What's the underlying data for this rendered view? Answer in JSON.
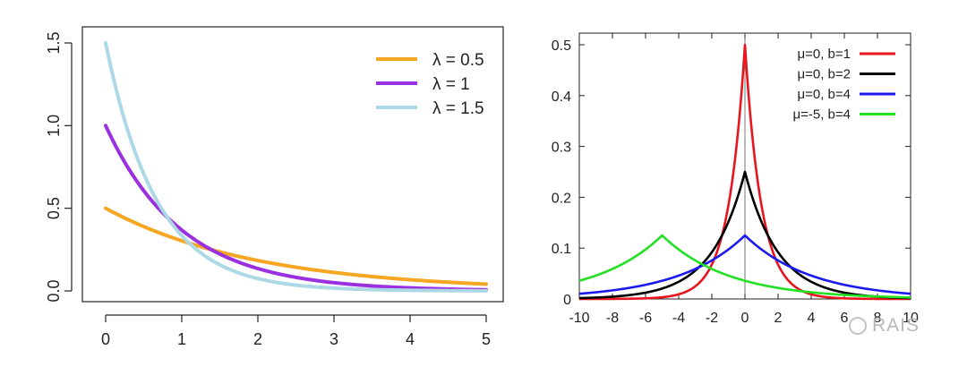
{
  "chart_data": [
    {
      "type": "line",
      "title": "",
      "xlabel": "",
      "ylabel": "",
      "xlim": [
        0,
        5
      ],
      "ylim": [
        0,
        1.5
      ],
      "xticks": [
        "0",
        "1",
        "2",
        "3",
        "4",
        "5"
      ],
      "yticks": [
        "0.0",
        "0.5",
        "1.0",
        "1.5"
      ],
      "grid": false,
      "legend_position": "top-right",
      "distribution": "exponential",
      "series": [
        {
          "name": "λ = 0.5",
          "lambda": 0.5,
          "color": "#f5a623",
          "x": [
            0,
            0.5,
            1,
            1.5,
            2,
            2.5,
            3,
            3.5,
            4,
            4.5,
            5
          ],
          "values": [
            0.5,
            0.389,
            0.303,
            0.236,
            0.184,
            0.143,
            0.112,
            0.087,
            0.068,
            0.053,
            0.041
          ]
        },
        {
          "name": "λ = 1",
          "lambda": 1,
          "color": "#9b30e0",
          "x": [
            0,
            0.5,
            1,
            1.5,
            2,
            2.5,
            3,
            3.5,
            4,
            4.5,
            5
          ],
          "values": [
            1.0,
            0.607,
            0.368,
            0.223,
            0.135,
            0.082,
            0.05,
            0.03,
            0.018,
            0.011,
            0.007
          ]
        },
        {
          "name": "λ = 1.5",
          "lambda": 1.5,
          "color": "#add8e6",
          "x": [
            0,
            0.5,
            1,
            1.5,
            2,
            2.5,
            3,
            3.5,
            4,
            4.5,
            5
          ],
          "values": [
            1.5,
            0.708,
            0.335,
            0.158,
            0.075,
            0.035,
            0.017,
            0.008,
            0.004,
            0.002,
            0.001
          ]
        }
      ]
    },
    {
      "type": "line",
      "title": "",
      "xlabel": "",
      "ylabel": "",
      "xlim": [
        -10,
        10
      ],
      "ylim": [
        0,
        0.5
      ],
      "xticks": [
        "-10",
        "-8",
        "-6",
        "-4",
        "-2",
        "0",
        "2",
        "4",
        "6",
        "8",
        "10"
      ],
      "yticks": [
        "0",
        "0.1",
        "0.2",
        "0.3",
        "0.4",
        "0.5"
      ],
      "grid": false,
      "vertical_line_at": 0,
      "legend_position": "top-right",
      "distribution": "laplace",
      "series": [
        {
          "name": "μ=0, b=1",
          "mu": 0,
          "b": 1,
          "color": "#e8141e",
          "x": [
            -10,
            -6,
            -4,
            -2,
            -1,
            0,
            1,
            2,
            4,
            6,
            10
          ],
          "values": [
            0.0,
            0.001,
            0.009,
            0.068,
            0.184,
            0.45,
            0.184,
            0.068,
            0.009,
            0.001,
            0.0
          ]
        },
        {
          "name": "μ=0, b=2",
          "mu": 0,
          "b": 2,
          "color": "#000000",
          "x": [
            -10,
            -6,
            -4,
            -2,
            -1,
            0,
            1,
            2,
            4,
            6,
            10
          ],
          "values": [
            0.002,
            0.012,
            0.034,
            0.092,
            0.152,
            0.24,
            0.152,
            0.092,
            0.034,
            0.012,
            0.002
          ]
        },
        {
          "name": "μ=0, b=4",
          "mu": 0,
          "b": 4,
          "color": "#1a1aee",
          "x": [
            -10,
            -6,
            -4,
            -2,
            0,
            2,
            4,
            6,
            10
          ],
          "values": [
            0.01,
            0.028,
            0.046,
            0.076,
            0.122,
            0.076,
            0.046,
            0.028,
            0.01
          ]
        },
        {
          "name": "μ=-5, b=4",
          "mu": -5,
          "b": 4,
          "color": "#22e022",
          "x": [
            -10,
            -8,
            -5,
            -4,
            -2,
            0,
            2,
            5,
            10
          ],
          "values": [
            0.036,
            0.059,
            0.122,
            0.097,
            0.059,
            0.036,
            0.022,
            0.01,
            0.003
          ]
        }
      ]
    }
  ],
  "watermark": {
    "text": "RAIS"
  }
}
